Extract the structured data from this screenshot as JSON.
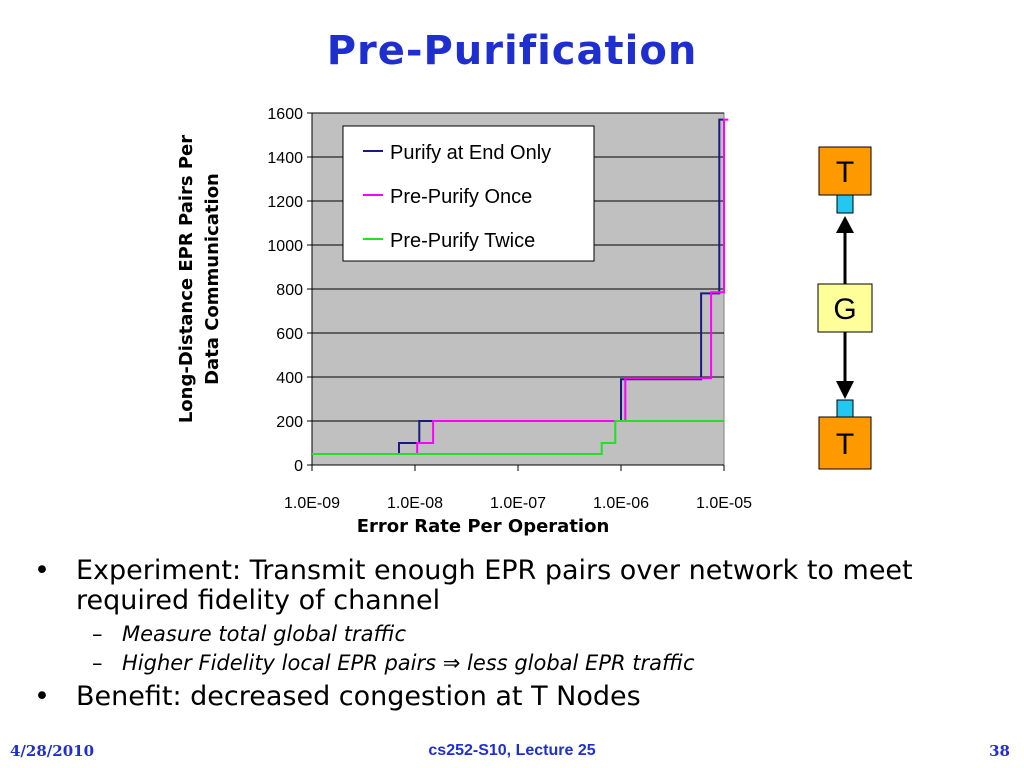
{
  "slide": {
    "title": "Pre-Purification",
    "bullets": [
      {
        "text": "Experiment: Transmit enough EPR pairs over network to meet required fidelity of channel",
        "subs": [
          "Measure total global traffic",
          "Higher Fidelity local EPR pairs ⇒ less global EPR traffic"
        ]
      },
      {
        "text": "Benefit: decreased congestion at T Nodes",
        "subs": []
      }
    ],
    "footer": {
      "date": "4/28/2010",
      "course": "cs252-S10, Lecture 25",
      "page": "38"
    }
  },
  "chart_data": {
    "type": "line",
    "title": "",
    "xlabel": "Error Rate Per Operation",
    "ylabel": [
      "Long-Distance EPR Pairs Per",
      "Data Communication"
    ],
    "x_scale": "log",
    "xlim": [
      1e-09,
      1e-05
    ],
    "x_ticks": [
      {
        "value": 1e-09,
        "label": "1.0E-09"
      },
      {
        "value": 1e-08,
        "label": "1.0E-08"
      },
      {
        "value": 1e-07,
        "label": "1.0E-07"
      },
      {
        "value": 1e-06,
        "label": "1.0E-06"
      },
      {
        "value": 1e-05,
        "label": "1.0E-05"
      }
    ],
    "ylim": [
      0,
      1600
    ],
    "y_ticks": [
      0,
      200,
      400,
      600,
      800,
      1000,
      1200,
      1400,
      1600
    ],
    "plot_background": "#c0c0c0",
    "legend_position": "top-left",
    "series": [
      {
        "name": "Purify at End Only",
        "color": "#1a1a80",
        "points": [
          [
            1e-09,
            50
          ],
          [
            7e-09,
            50
          ],
          [
            7e-09,
            100
          ],
          [
            1.1e-08,
            100
          ],
          [
            1.1e-08,
            200
          ],
          [
            1e-06,
            200
          ],
          [
            1e-06,
            390
          ],
          [
            6e-06,
            390
          ],
          [
            6e-06,
            780
          ],
          [
            9e-06,
            780
          ],
          [
            9e-06,
            1570
          ],
          [
            1e-05,
            1570
          ]
        ]
      },
      {
        "name": "Pre-Purify Once",
        "color": "#ff00ff",
        "points": [
          [
            1e-09,
            50
          ],
          [
            1.05e-08,
            50
          ],
          [
            1.05e-08,
            100
          ],
          [
            1.5e-08,
            100
          ],
          [
            1.5e-08,
            200
          ],
          [
            1.1e-06,
            200
          ],
          [
            1.1e-06,
            395
          ],
          [
            1.3e-06,
            395
          ],
          [
            1.3e-06,
            395
          ],
          [
            7.5e-06,
            395
          ],
          [
            7.5e-06,
            785
          ],
          [
            1e-05,
            785
          ],
          [
            1e-05,
            1570
          ],
          [
            1.1e-05,
            1570
          ]
        ]
      },
      {
        "name": "Pre-Purify Twice",
        "color": "#22e022",
        "points": [
          [
            1e-09,
            50
          ],
          [
            6.5e-07,
            50
          ],
          [
            6.5e-07,
            100
          ],
          [
            8.8e-07,
            100
          ],
          [
            8.8e-07,
            200
          ],
          [
            1e-05,
            200
          ]
        ]
      }
    ]
  },
  "diagram": {
    "top_node": "T",
    "middle_node": "G",
    "bottom_node": "T",
    "node_color": "#ff9900",
    "middle_color": "#ffff99",
    "port_color": "#22c8ef"
  }
}
